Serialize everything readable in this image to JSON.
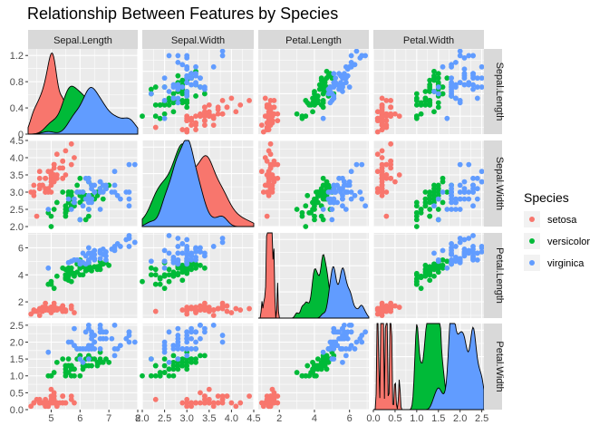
{
  "chart_data": {
    "type": "scatter",
    "title": "Relationship Between Features by Species",
    "variables": [
      "Sepal.Length",
      "Sepal.Width",
      "Petal.Length",
      "Petal.Width"
    ],
    "diagonal": "density",
    "axes": [
      {
        "name": "Sepal.Length",
        "lim": [
          4.2,
          8.0
        ],
        "ticks": [
          5,
          6,
          7,
          8
        ]
      },
      {
        "name": "Sepal.Width",
        "lim": [
          2.0,
          4.5
        ],
        "ticks": [
          2.0,
          2.5,
          3.0,
          3.5,
          4.0,
          4.5
        ]
      },
      {
        "name": "Petal.Length",
        "lim": [
          0.8,
          7.1
        ],
        "ticks": [
          2,
          4,
          6
        ]
      },
      {
        "name": "Petal.Width",
        "lim": [
          0.0,
          2.55
        ],
        "ticks": [
          0.0,
          0.5,
          1.0,
          1.5,
          2.0,
          2.5
        ]
      }
    ],
    "density_axis": {
      "lim": [
        0,
        1.3
      ],
      "ticks": [
        0.0,
        0.4,
        0.8,
        1.2
      ]
    },
    "legend": {
      "title": "Species",
      "position": "right"
    },
    "grid": true,
    "series": [
      {
        "name": "setosa",
        "color": "#F8766D",
        "points": [
          [
            5.1,
            3.5,
            1.4,
            0.2
          ],
          [
            4.9,
            3.0,
            1.4,
            0.2
          ],
          [
            4.7,
            3.2,
            1.3,
            0.2
          ],
          [
            4.6,
            3.1,
            1.5,
            0.2
          ],
          [
            5.0,
            3.6,
            1.4,
            0.2
          ],
          [
            5.4,
            3.9,
            1.7,
            0.4
          ],
          [
            4.6,
            3.4,
            1.4,
            0.3
          ],
          [
            5.0,
            3.4,
            1.5,
            0.2
          ],
          [
            4.4,
            2.9,
            1.4,
            0.2
          ],
          [
            4.9,
            3.1,
            1.5,
            0.1
          ],
          [
            5.4,
            3.7,
            1.5,
            0.2
          ],
          [
            4.8,
            3.4,
            1.6,
            0.2
          ],
          [
            4.8,
            3.0,
            1.4,
            0.1
          ],
          [
            4.3,
            3.0,
            1.1,
            0.1
          ],
          [
            5.8,
            4.0,
            1.2,
            0.2
          ],
          [
            5.7,
            4.4,
            1.5,
            0.4
          ],
          [
            5.4,
            3.9,
            1.3,
            0.4
          ],
          [
            5.1,
            3.5,
            1.4,
            0.3
          ],
          [
            5.7,
            3.8,
            1.7,
            0.3
          ],
          [
            5.1,
            3.8,
            1.5,
            0.3
          ],
          [
            5.4,
            3.4,
            1.7,
            0.2
          ],
          [
            5.1,
            3.7,
            1.5,
            0.4
          ],
          [
            4.6,
            3.6,
            1.0,
            0.2
          ],
          [
            5.1,
            3.3,
            1.7,
            0.5
          ],
          [
            4.8,
            3.4,
            1.9,
            0.2
          ],
          [
            5.0,
            3.0,
            1.6,
            0.2
          ],
          [
            5.0,
            3.4,
            1.6,
            0.4
          ],
          [
            5.2,
            3.5,
            1.5,
            0.2
          ],
          [
            5.2,
            3.4,
            1.4,
            0.2
          ],
          [
            4.7,
            3.2,
            1.6,
            0.2
          ],
          [
            4.8,
            3.1,
            1.6,
            0.2
          ],
          [
            5.4,
            3.4,
            1.5,
            0.4
          ],
          [
            5.2,
            4.1,
            1.5,
            0.1
          ],
          [
            5.5,
            4.2,
            1.4,
            0.2
          ],
          [
            4.9,
            3.1,
            1.5,
            0.2
          ],
          [
            5.0,
            3.2,
            1.2,
            0.2
          ],
          [
            5.5,
            3.5,
            1.3,
            0.2
          ],
          [
            4.9,
            3.6,
            1.4,
            0.1
          ],
          [
            4.4,
            3.0,
            1.3,
            0.2
          ],
          [
            5.1,
            3.4,
            1.5,
            0.2
          ],
          [
            5.0,
            3.5,
            1.3,
            0.3
          ],
          [
            4.5,
            2.3,
            1.3,
            0.3
          ],
          [
            4.4,
            3.2,
            1.3,
            0.2
          ],
          [
            5.0,
            3.5,
            1.6,
            0.6
          ],
          [
            5.1,
            3.8,
            1.9,
            0.4
          ],
          [
            4.8,
            3.0,
            1.4,
            0.3
          ],
          [
            5.1,
            3.8,
            1.6,
            0.2
          ],
          [
            4.6,
            3.2,
            1.4,
            0.2
          ],
          [
            5.3,
            3.7,
            1.5,
            0.2
          ],
          [
            5.0,
            3.3,
            1.4,
            0.2
          ]
        ]
      },
      {
        "name": "versicolor",
        "color": "#00BA38",
        "points": [
          [
            7.0,
            3.2,
            4.7,
            1.4
          ],
          [
            6.4,
            3.2,
            4.5,
            1.5
          ],
          [
            6.9,
            3.1,
            4.9,
            1.5
          ],
          [
            5.5,
            2.3,
            4.0,
            1.3
          ],
          [
            6.5,
            2.8,
            4.6,
            1.5
          ],
          [
            5.7,
            2.8,
            4.5,
            1.3
          ],
          [
            6.3,
            3.3,
            4.7,
            1.6
          ],
          [
            4.9,
            2.4,
            3.3,
            1.0
          ],
          [
            6.6,
            2.9,
            4.6,
            1.3
          ],
          [
            5.2,
            2.7,
            3.9,
            1.4
          ],
          [
            5.0,
            2.0,
            3.5,
            1.0
          ],
          [
            5.9,
            3.0,
            4.2,
            1.5
          ],
          [
            6.0,
            2.2,
            4.0,
            1.0
          ],
          [
            6.1,
            2.9,
            4.7,
            1.4
          ],
          [
            5.6,
            2.9,
            3.6,
            1.3
          ],
          [
            6.7,
            3.1,
            4.4,
            1.4
          ],
          [
            5.6,
            3.0,
            4.5,
            1.5
          ],
          [
            5.8,
            2.7,
            4.1,
            1.0
          ],
          [
            6.2,
            2.2,
            4.5,
            1.5
          ],
          [
            5.6,
            2.5,
            3.9,
            1.1
          ],
          [
            5.9,
            3.2,
            4.8,
            1.8
          ],
          [
            6.1,
            2.8,
            4.0,
            1.3
          ],
          [
            6.3,
            2.5,
            4.9,
            1.5
          ],
          [
            6.1,
            2.8,
            4.7,
            1.2
          ],
          [
            6.4,
            2.9,
            4.3,
            1.3
          ],
          [
            6.6,
            3.0,
            4.4,
            1.4
          ],
          [
            6.8,
            2.8,
            4.8,
            1.4
          ],
          [
            6.7,
            3.0,
            5.0,
            1.7
          ],
          [
            6.0,
            2.9,
            4.5,
            1.5
          ],
          [
            5.7,
            2.6,
            3.5,
            1.0
          ],
          [
            5.5,
            2.4,
            3.8,
            1.1
          ],
          [
            5.5,
            2.4,
            3.7,
            1.0
          ],
          [
            5.8,
            2.7,
            3.9,
            1.2
          ],
          [
            6.0,
            2.7,
            5.1,
            1.6
          ],
          [
            5.4,
            3.0,
            4.5,
            1.5
          ],
          [
            6.0,
            3.4,
            4.5,
            1.6
          ],
          [
            6.7,
            3.1,
            4.7,
            1.5
          ],
          [
            6.3,
            2.3,
            4.4,
            1.3
          ],
          [
            5.6,
            3.0,
            4.1,
            1.3
          ],
          [
            5.5,
            2.5,
            4.0,
            1.3
          ],
          [
            5.5,
            2.6,
            4.4,
            1.2
          ],
          [
            6.1,
            3.0,
            4.6,
            1.4
          ],
          [
            5.8,
            2.6,
            4.0,
            1.2
          ],
          [
            5.0,
            2.3,
            3.3,
            1.0
          ],
          [
            5.6,
            2.7,
            4.2,
            1.3
          ],
          [
            5.7,
            3.0,
            4.2,
            1.2
          ],
          [
            5.7,
            2.9,
            4.2,
            1.3
          ],
          [
            6.2,
            2.9,
            4.3,
            1.3
          ],
          [
            5.1,
            2.5,
            3.0,
            1.1
          ],
          [
            5.7,
            2.8,
            4.1,
            1.3
          ]
        ]
      },
      {
        "name": "virginica",
        "color": "#619CFF",
        "points": [
          [
            6.3,
            3.3,
            6.0,
            2.5
          ],
          [
            5.8,
            2.7,
            5.1,
            1.9
          ],
          [
            7.1,
            3.0,
            5.9,
            2.1
          ],
          [
            6.3,
            2.9,
            5.6,
            1.8
          ],
          [
            6.5,
            3.0,
            5.8,
            2.2
          ],
          [
            7.6,
            3.0,
            6.6,
            2.1
          ],
          [
            4.9,
            2.5,
            4.5,
            1.7
          ],
          [
            7.3,
            2.9,
            6.3,
            1.8
          ],
          [
            6.7,
            2.5,
            5.8,
            1.8
          ],
          [
            7.2,
            3.6,
            6.1,
            2.5
          ],
          [
            6.5,
            3.2,
            5.1,
            2.0
          ],
          [
            6.4,
            2.7,
            5.3,
            1.9
          ],
          [
            6.8,
            3.0,
            5.5,
            2.1
          ],
          [
            5.7,
            2.5,
            5.0,
            2.0
          ],
          [
            5.8,
            2.8,
            5.1,
            2.4
          ],
          [
            6.4,
            3.2,
            5.3,
            2.3
          ],
          [
            6.5,
            3.0,
            5.5,
            1.8
          ],
          [
            7.7,
            3.8,
            6.7,
            2.2
          ],
          [
            7.7,
            2.6,
            6.9,
            2.3
          ],
          [
            6.0,
            2.2,
            5.0,
            1.5
          ],
          [
            6.9,
            3.2,
            5.7,
            2.3
          ],
          [
            5.6,
            2.8,
            4.9,
            2.0
          ],
          [
            7.7,
            2.8,
            6.7,
            2.0
          ],
          [
            6.3,
            2.7,
            4.9,
            1.8
          ],
          [
            6.7,
            3.3,
            5.7,
            2.1
          ],
          [
            7.2,
            3.2,
            6.0,
            1.8
          ],
          [
            6.2,
            2.8,
            4.8,
            1.8
          ],
          [
            6.1,
            3.0,
            4.9,
            1.8
          ],
          [
            6.4,
            2.8,
            5.6,
            2.1
          ],
          [
            7.2,
            3.0,
            5.8,
            1.6
          ],
          [
            7.4,
            2.8,
            6.1,
            1.9
          ],
          [
            7.9,
            3.8,
            6.4,
            2.0
          ],
          [
            6.4,
            2.8,
            5.6,
            2.2
          ],
          [
            6.3,
            2.8,
            5.1,
            1.5
          ],
          [
            6.1,
            2.6,
            5.6,
            1.4
          ],
          [
            7.7,
            3.0,
            6.1,
            2.3
          ],
          [
            6.3,
            3.4,
            5.6,
            2.4
          ],
          [
            6.4,
            3.1,
            5.5,
            1.8
          ],
          [
            6.0,
            3.0,
            4.8,
            1.8
          ],
          [
            6.9,
            3.1,
            5.4,
            2.1
          ],
          [
            6.7,
            3.1,
            5.6,
            2.4
          ],
          [
            6.9,
            3.1,
            5.1,
            2.3
          ],
          [
            5.8,
            2.7,
            5.1,
            1.9
          ],
          [
            6.8,
            3.2,
            5.9,
            2.3
          ],
          [
            6.7,
            3.3,
            5.7,
            2.5
          ],
          [
            6.7,
            3.0,
            5.2,
            2.3
          ],
          [
            6.3,
            2.5,
            5.0,
            1.9
          ],
          [
            6.5,
            3.0,
            5.2,
            2.0
          ],
          [
            6.2,
            3.4,
            5.4,
            2.3
          ],
          [
            5.9,
            3.0,
            5.1,
            1.8
          ]
        ]
      }
    ]
  }
}
